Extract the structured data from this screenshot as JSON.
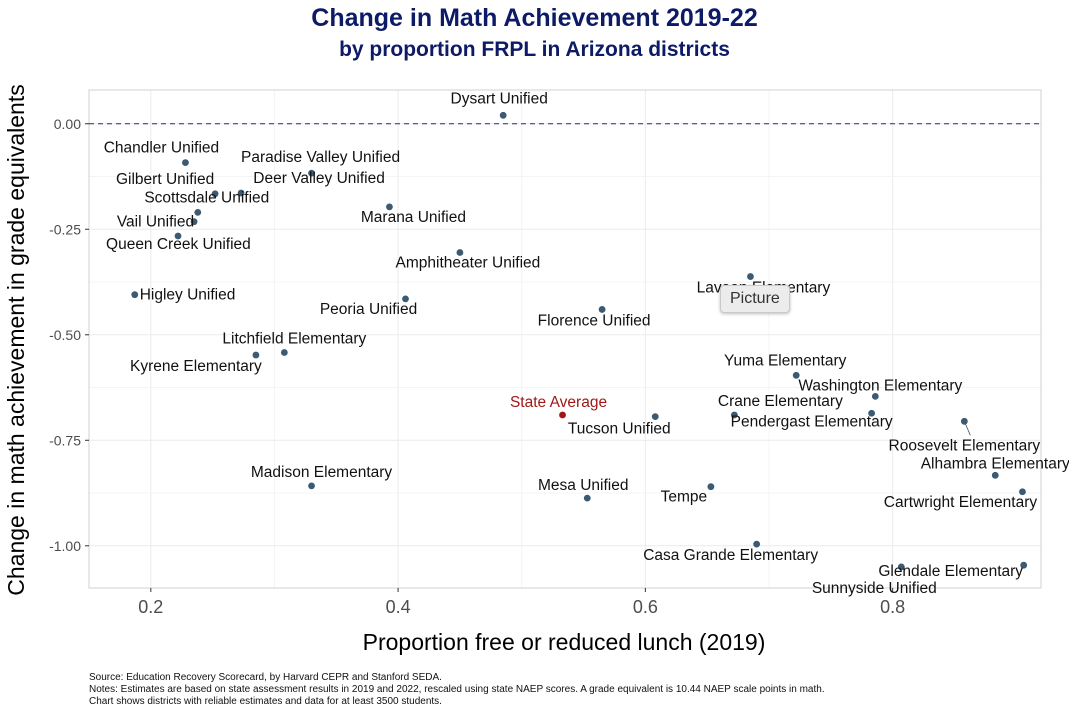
{
  "chart_data": {
    "type": "scatter",
    "title": "Change in Math Achievement 2019-22",
    "subtitle": "by proportion FRPL in Arizona districts",
    "xlabel": "Proportion free or reduced lunch (2019)",
    "ylabel": "Change in math achievement in grade equivalents",
    "xlim": [
      0.15,
      0.92
    ],
    "ylim": [
      -1.1,
      0.08
    ],
    "x_ticks": [
      "0.2",
      "0.4",
      "0.6",
      "0.8"
    ],
    "x_tick_values": [
      0.2,
      0.4,
      0.6,
      0.8
    ],
    "y_ticks": [
      "0.00",
      "-0.25",
      "-0.50",
      "-0.75",
      "-1.00"
    ],
    "y_tick_values": [
      0.0,
      -0.25,
      -0.5,
      -0.75,
      -1.0
    ],
    "reference_line": 0.0,
    "grid": true,
    "point_color": "#3d5a73",
    "highlight_color": "#a01818",
    "points": [
      {
        "name": "Dysart Unified",
        "x": 0.485,
        "y": 0.02
      },
      {
        "name": "Chandler Unified",
        "x": 0.228,
        "y": -0.092
      },
      {
        "name": "Paradise Valley Unified",
        "x": 0.33,
        "y": -0.117
      },
      {
        "name": "Gilbert Unified",
        "x": 0.252,
        "y": -0.166
      },
      {
        "name": "Deer Valley Unified",
        "x": 0.273,
        "y": -0.164
      },
      {
        "name": "Scottsdale Unified",
        "x": 0.238,
        "y": -0.21
      },
      {
        "name": "Marana Unified",
        "x": 0.393,
        "y": -0.197
      },
      {
        "name": "Vail Unified",
        "x": 0.235,
        "y": -0.232
      },
      {
        "name": "Queen Creek Unified",
        "x": 0.222,
        "y": -0.266
      },
      {
        "name": "Amphitheater Unified",
        "x": 0.45,
        "y": -0.305
      },
      {
        "name": "Laveen Elementary",
        "x": 0.685,
        "y": -0.362
      },
      {
        "name": "Higley Unified",
        "x": 0.187,
        "y": -0.405
      },
      {
        "name": "Peoria Unified",
        "x": 0.406,
        "y": -0.415
      },
      {
        "name": "Florence Unified",
        "x": 0.565,
        "y": -0.44
      },
      {
        "name": "Litchfield Elementary",
        "x": 0.308,
        "y": -0.542
      },
      {
        "name": "Kyrene Elementary",
        "x": 0.285,
        "y": -0.548
      },
      {
        "name": "Yuma Elementary",
        "x": 0.722,
        "y": -0.596
      },
      {
        "name": "Washington Elementary",
        "x": 0.786,
        "y": -0.646
      },
      {
        "name": "State Average",
        "x": 0.533,
        "y": -0.69,
        "highlight": true
      },
      {
        "name": "Tucson Unified",
        "x": 0.608,
        "y": -0.694
      },
      {
        "name": "Crane Elementary",
        "x": 0.672,
        "y": -0.69
      },
      {
        "name": "Pendergast Elementary",
        "x": 0.783,
        "y": -0.686
      },
      {
        "name": "Roosevelt Elementary",
        "x": 0.858,
        "y": -0.705
      },
      {
        "name": "Alhambra Elementary",
        "x": 0.883,
        "y": -0.833
      },
      {
        "name": "Madison Elementary",
        "x": 0.33,
        "y": -0.858
      },
      {
        "name": "Tempe",
        "x": 0.653,
        "y": -0.86
      },
      {
        "name": "Cartwright Elementary",
        "x": 0.905,
        "y": -0.872
      },
      {
        "name": "Mesa Unified",
        "x": 0.553,
        "y": -0.887
      },
      {
        "name": "Casa Grande Elementary",
        "x": 0.69,
        "y": -0.996
      },
      {
        "name": "Glendale Elementary",
        "x": 0.906,
        "y": -1.046
      },
      {
        "name": "Sunnyside Unified",
        "x": 0.807,
        "y": -1.05
      }
    ]
  },
  "notes": {
    "source": "Source: Education Recovery Scorecard, by Harvard CEPR and Stanford SEDA.",
    "line1": "Notes: Estimates are based on state assessment results in 2019 and 2022, rescaled using state NAEP scores. A grade equivalent is 10.44 NAEP scale points in math.",
    "line2": "Chart shows districts with reliable estimates and data for at least 3500 students."
  },
  "tooltip": "Picture"
}
